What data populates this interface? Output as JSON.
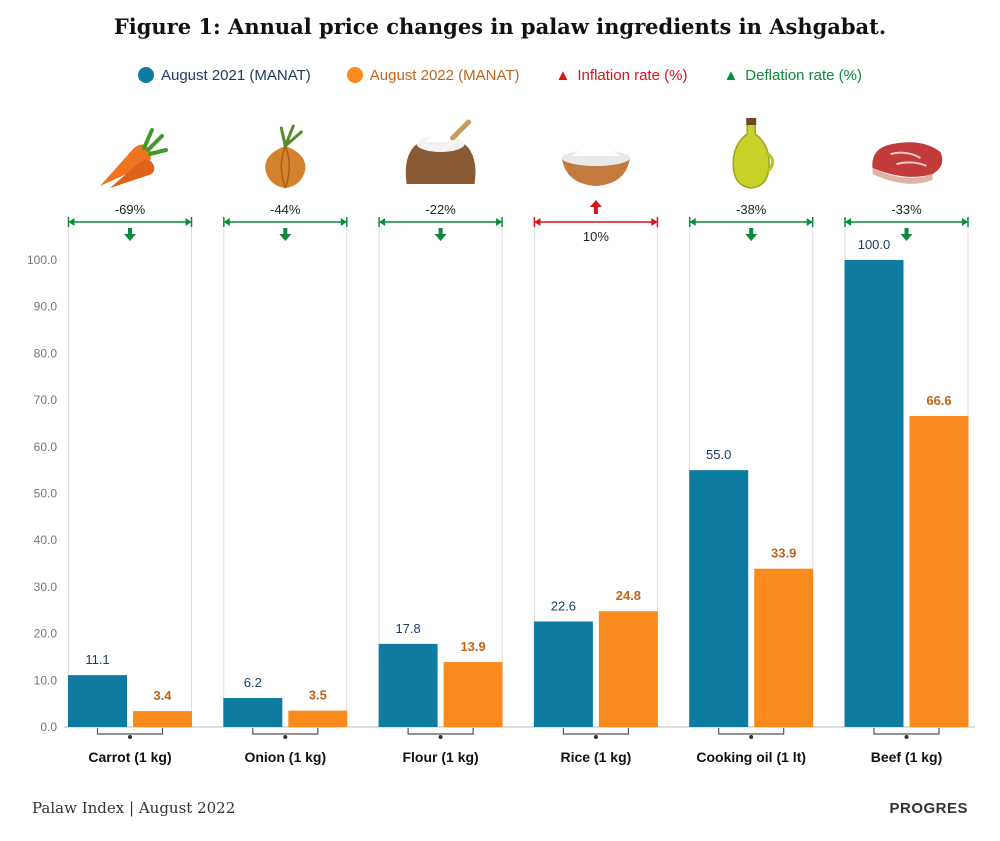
{
  "title": "Figure 1: Annual price changes in palaw ingredients in Ashgabat.",
  "legend": {
    "s2021": "August 2021 (MANAT)",
    "s2022": "August 2022 (MANAT)",
    "inflation": "Inflation rate (%)",
    "deflation": "Deflation rate (%)"
  },
  "colors": {
    "s2021": "#0e7ba1",
    "s2022": "#f98a1e",
    "inflation": "#d7141d",
    "deflation": "#0c8b3b",
    "label2021": "#1d3c63",
    "label2022": "#c0641a"
  },
  "icons": [
    "carrot-icon",
    "onion-icon",
    "flour-sack-icon",
    "rice-bowl-icon",
    "oil-bottle-icon",
    "beef-steak-icon"
  ],
  "footer": {
    "source": "Palaw Index | August 2022",
    "brand": "PROGRES"
  },
  "chart_data": {
    "type": "bar",
    "categories": [
      "Carrot (1 kg)",
      "Onion (1 kg)",
      "Flour (1 kg)",
      "Rice (1 kg)",
      "Cooking oil (1 lt)",
      "Beef (1 kg)"
    ],
    "series": [
      {
        "name": "August 2021 (MANAT)",
        "values": [
          11.1,
          6.2,
          17.8,
          22.6,
          55.0,
          100.0
        ],
        "labels": [
          "11.1",
          "6.2",
          "17.8",
          "22.6",
          "55.0",
          "100.0"
        ]
      },
      {
        "name": "August 2022 (MANAT)",
        "values": [
          3.4,
          3.5,
          13.9,
          24.8,
          33.9,
          66.6
        ],
        "labels": [
          "3.4",
          "3.5",
          "13.9",
          "24.8",
          "33.9",
          "66.6"
        ]
      }
    ],
    "change": [
      {
        "label": "-69%",
        "direction": "deflation"
      },
      {
        "label": "-44%",
        "direction": "deflation"
      },
      {
        "label": "-22%",
        "direction": "deflation"
      },
      {
        "label": "10%",
        "direction": "inflation"
      },
      {
        "label": "-38%",
        "direction": "deflation"
      },
      {
        "label": "-33%",
        "direction": "deflation"
      }
    ],
    "yticks": [
      "0.0",
      "10.0",
      "20.0",
      "30.0",
      "40.0",
      "50.0",
      "60.0",
      "70.0",
      "80.0",
      "90.0",
      "100.0"
    ],
    "ylim": [
      0,
      100
    ],
    "grid": false
  }
}
